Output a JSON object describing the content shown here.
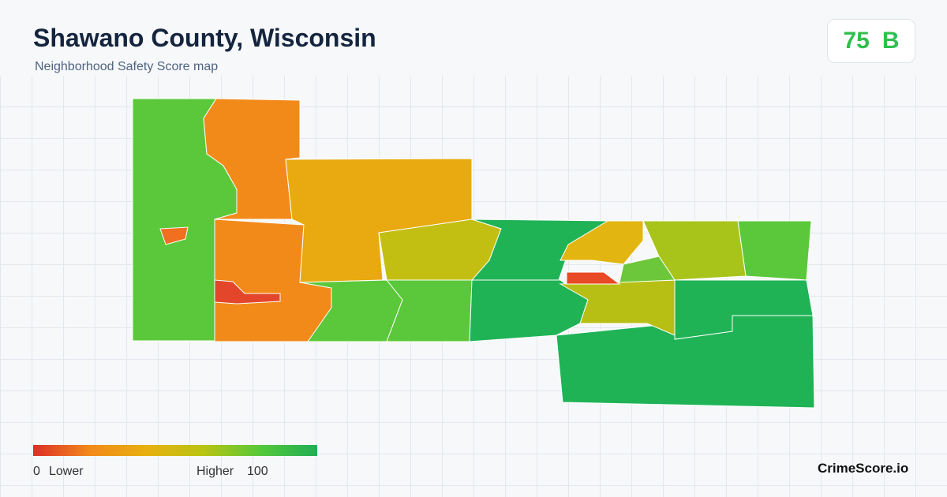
{
  "header": {
    "title": "Shawano County, Wisconsin",
    "subtitle": "Neighborhood Safety Score map"
  },
  "score": {
    "value": "75",
    "grade": "B"
  },
  "legend": {
    "min": 0,
    "min_label": "Lower",
    "max_label": "Higher",
    "max": 100
  },
  "brand": "CrimeScore.io"
}
